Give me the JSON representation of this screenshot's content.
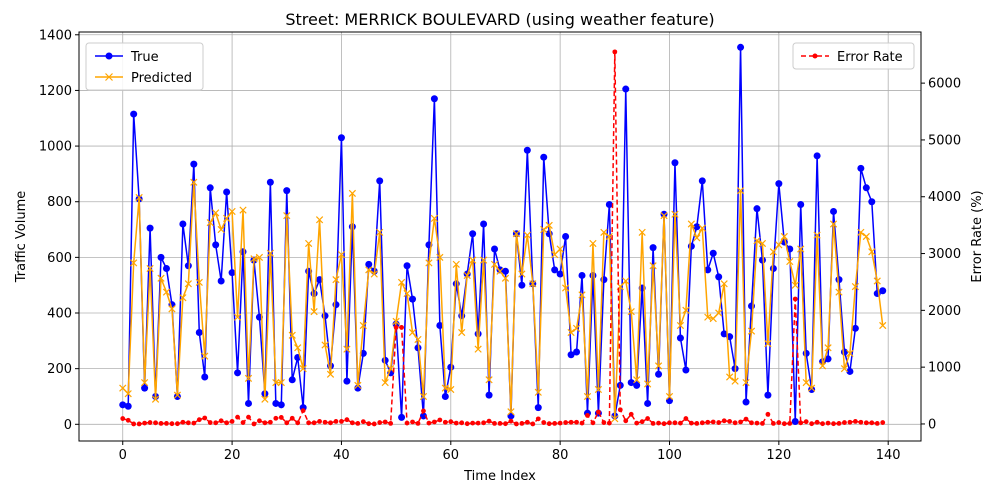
{
  "chart_data": {
    "type": "line",
    "title": "Street: MERRICK BOULEVARD (using weather feature)",
    "xlabel": "Time Index",
    "ylabel": "Traffic Volume",
    "y2label": "Error Rate (%)",
    "xlim": [
      -8,
      146
    ],
    "ylim": [
      -60,
      1410
    ],
    "y2lim": [
      -300,
      6900
    ],
    "x_ticks": [
      0,
      20,
      40,
      60,
      80,
      100,
      120,
      140
    ],
    "y_ticks": [
      0,
      200,
      400,
      600,
      800,
      1000,
      1200,
      1400
    ],
    "y2_ticks": [
      0,
      1000,
      2000,
      3000,
      4000,
      5000,
      6000
    ],
    "grid": true,
    "legend_left": "upper-left",
    "legend_right": "upper-right",
    "colors": {
      "true": "#0000ff",
      "predicted": "#ffa500",
      "error": "#ff0000"
    },
    "series": [
      {
        "name": "True",
        "axis": "left",
        "values": [
          70,
          65,
          1115,
          810,
          130,
          705,
          100,
          600,
          560,
          430,
          100,
          720,
          570,
          935,
          330,
          170,
          850,
          645,
          515,
          835,
          545,
          185,
          620,
          75,
          590,
          385,
          110,
          870,
          75,
          70,
          840,
          160,
          240,
          60,
          550,
          470,
          520,
          390,
          210,
          430,
          1030,
          155,
          710,
          130,
          255,
          575,
          550,
          875,
          230,
          185,
          360,
          25,
          570,
          450,
          275,
          30,
          645,
          1170,
          355,
          100,
          205,
          505,
          390,
          540,
          685,
          325,
          720,
          105,
          630,
          555,
          550,
          30,
          685,
          500,
          985,
          505,
          60,
          960,
          685,
          555,
          540,
          675,
          250,
          260,
          535,
          40,
          535,
          40,
          520,
          790,
          30,
          140,
          1205,
          150,
          140,
          490,
          75,
          635,
          180,
          755,
          85,
          940,
          310,
          195,
          640,
          710,
          875,
          555,
          615,
          530,
          325,
          315,
          200,
          1355,
          80,
          425,
          775,
          590,
          105,
          560,
          865,
          655,
          630,
          10,
          790,
          255,
          125,
          965,
          225,
          235,
          765,
          520,
          260,
          190,
          345,
          920,
          850,
          800,
          470,
          480
        ]
      },
      {
        "name": "Predicted",
        "axis": "left",
        "values": [
          130,
          110,
          580,
          815,
          150,
          560,
          90,
          525,
          475,
          415,
          105,
          455,
          505,
          870,
          510,
          245,
          725,
          760,
          700,
          740,
          765,
          385,
          770,
          165,
          595,
          600,
          90,
          615,
          150,
          150,
          750,
          320,
          275,
          200,
          650,
          405,
          735,
          285,
          180,
          520,
          610,
          270,
          830,
          140,
          355,
          555,
          540,
          690,
          150,
          200,
          370,
          510,
          470,
          330,
          305,
          100,
          580,
          740,
          600,
          130,
          125,
          575,
          330,
          535,
          590,
          270,
          590,
          160,
          575,
          550,
          525,
          45,
          685,
          540,
          680,
          505,
          115,
          700,
          715,
          610,
          630,
          490,
          330,
          345,
          465,
          100,
          650,
          125,
          690,
          675,
          20,
          495,
          515,
          405,
          160,
          690,
          145,
          570,
          210,
          750,
          100,
          755,
          355,
          410,
          720,
          670,
          705,
          385,
          380,
          400,
          505,
          170,
          155,
          840,
          150,
          335,
          660,
          650,
          290,
          620,
          645,
          675,
          585,
          500,
          630,
          150,
          130,
          680,
          210,
          275,
          720,
          475,
          200,
          255,
          495,
          690,
          675,
          620,
          515,
          355
        ]
      },
      {
        "name": "Error Rate",
        "axis": "right",
        "values": [
          95,
          65,
          0,
          0,
          15,
          25,
          20,
          10,
          10,
          5,
          5,
          30,
          20,
          15,
          75,
          105,
          25,
          20,
          55,
          20,
          45,
          120,
          25,
          120,
          0,
          55,
          20,
          30,
          100,
          115,
          20,
          100,
          20,
          235,
          20,
          20,
          45,
          30,
          20,
          45,
          45,
          75,
          20,
          10,
          40,
          5,
          0,
          25,
          35,
          10,
          1700,
          1700,
          15,
          35,
          10,
          230,
          15,
          35,
          70,
          30,
          40,
          15,
          20,
          5,
          15,
          15,
          20,
          50,
          10,
          10,
          5,
          50,
          0,
          10,
          30,
          0,
          90,
          25,
          5,
          10,
          15,
          25,
          30,
          30,
          15,
          150,
          20,
          210,
          25,
          15,
          6550,
          250,
          55,
          170,
          15,
          40,
          95,
          10,
          15,
          5,
          20,
          20,
          15,
          95,
          15,
          10,
          20,
          30,
          35,
          25,
          55,
          45,
          20,
          35,
          85,
          20,
          15,
          10,
          170,
          10,
          25,
          5,
          10,
          2200,
          20,
          40,
          5,
          30,
          5,
          15,
          5,
          10,
          25,
          30,
          45,
          30,
          20,
          20,
          10,
          25
        ]
      }
    ],
    "legend": {
      "left": [
        {
          "label": "True",
          "series": "true"
        },
        {
          "label": "Predicted",
          "series": "predicted"
        }
      ],
      "right": [
        {
          "label": "Error Rate",
          "series": "error"
        }
      ]
    }
  }
}
